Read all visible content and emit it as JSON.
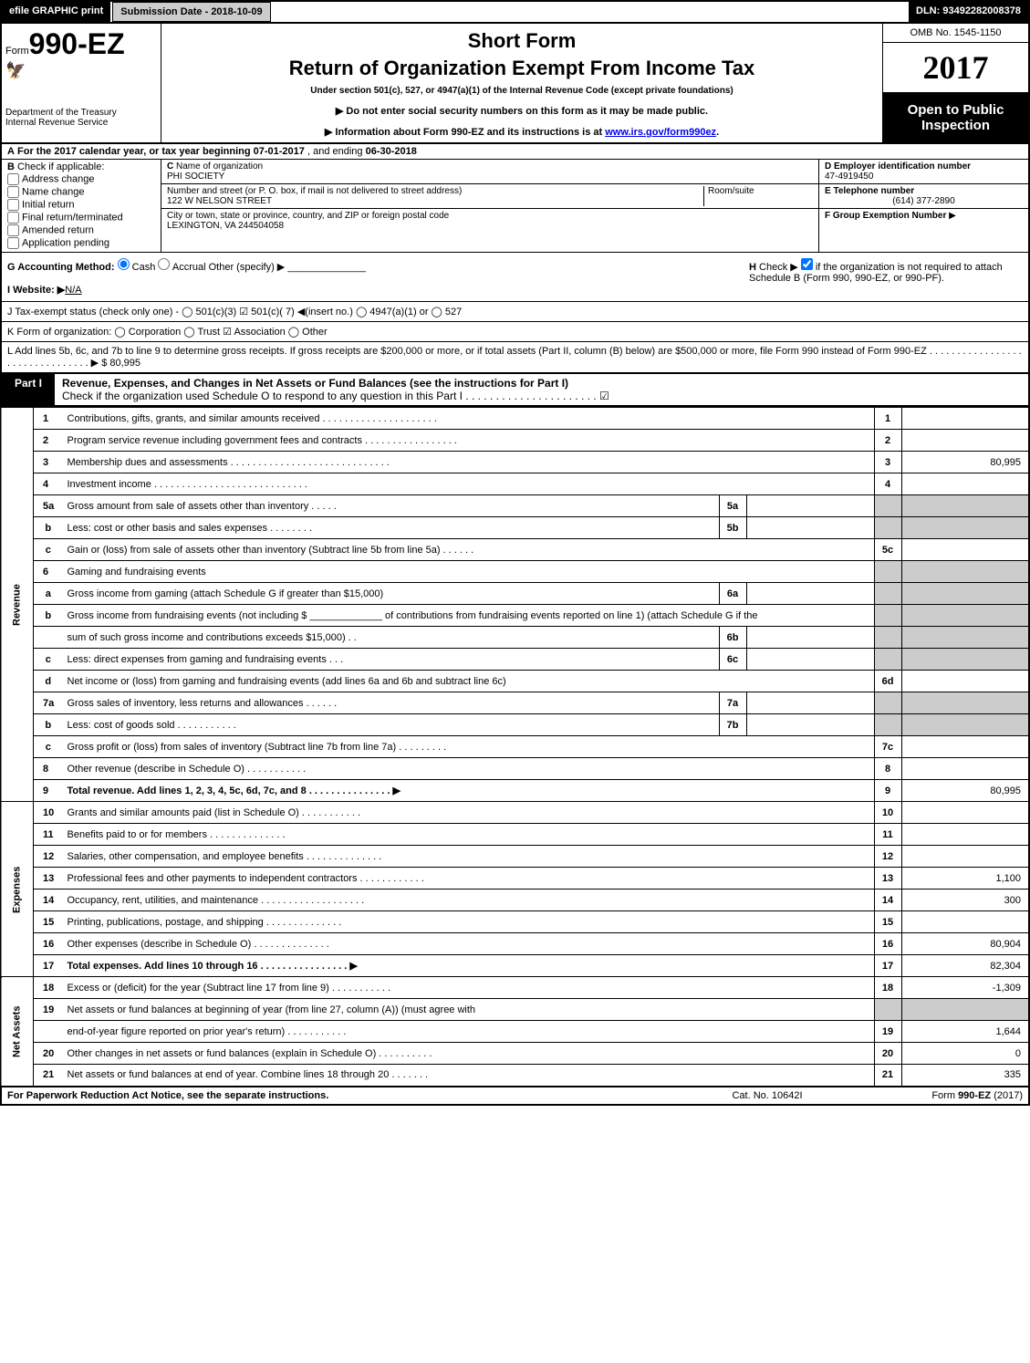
{
  "topbar": {
    "efile": "efile GRAPHIC print",
    "submission": "Submission Date - 2018-10-09",
    "dln": "DLN: 93492282008378"
  },
  "header": {
    "form_prefix": "Form",
    "form_no": "990-EZ",
    "dept1": "Department of the Treasury",
    "dept2": "Internal Revenue Service",
    "title1": "Short Form",
    "title2": "Return of Organization Exempt From Income Tax",
    "subtitle": "Under section 501(c), 527, or 4947(a)(1) of the Internal Revenue Code (except private foundations)",
    "note1": "▶ Do not enter social security numbers on this form as it may be made public.",
    "note2_pre": "▶ Information about Form 990-EZ and its instructions is at ",
    "note2_link": "www.irs.gov/form990ez",
    "note2_post": ".",
    "omb": "OMB No. 1545-1150",
    "year": "2017",
    "open": "Open to Public Inspection"
  },
  "period": {
    "a_label": "A",
    "text1": "For the 2017 calendar year, or tax year beginning ",
    "begin": "07-01-2017",
    "text2": ", and ending ",
    "end": "06-30-2018"
  },
  "boxB": {
    "label": "B",
    "title": "Check if applicable:",
    "opts": [
      "Address change",
      "Name change",
      "Initial return",
      "Final return/terminated",
      "Amended return",
      "Application pending"
    ]
  },
  "boxC": {
    "c_label": "C",
    "name_lbl": "Name of organization",
    "name": "PHI SOCIETY",
    "street_lbl": "Number and street (or P. O. box, if mail is not delivered to street address)",
    "room_lbl": "Room/suite",
    "street": "122 W NELSON STREET",
    "city_lbl": "City or town, state or province, country, and ZIP or foreign postal code",
    "city": "LEXINGTON, VA  244504058"
  },
  "boxD": {
    "d_lbl": "D Employer identification number",
    "d_val": "47-4919450",
    "e_lbl": "E Telephone number",
    "e_val": "(614) 377-2890",
    "f_lbl": "F Group Exemption Number",
    "f_arrow": "▶"
  },
  "ghi": {
    "g": "G Accounting Method:",
    "g_cash": "Cash",
    "g_accr": "Accrual",
    "g_other": "Other (specify) ▶",
    "i_lbl": "I Website: ▶",
    "i_val": "N/A",
    "h_lbl": "H",
    "h_text1": "Check ▶",
    "h_text2": "if the organization is not required to attach Schedule B (Form 990, 990-EZ, or 990-PF)."
  },
  "jline": "J Tax-exempt status (check only one) -  ◯ 501(c)(3)  ☑ 501(c)( 7) ◀(insert no.)  ◯ 4947(a)(1) or  ◯ 527",
  "kline": "K Form of organization:   ◯ Corporation   ◯ Trust   ☑ Association   ◯ Other",
  "lline": {
    "text": "L Add lines 5b, 6c, and 7b to line 9 to determine gross receipts. If gross receipts are $200,000 or more, or if total assets (Part II, column (B) below) are $500,000 or more, file Form 990 instead of Form 990-EZ  . . . . . . . . . . . . . . . . . . . . . . . . . . . . . . . . ▶ ",
    "amount": "$ 80,995"
  },
  "part1": {
    "label": "Part I",
    "title": "Revenue, Expenses, and Changes in Net Assets or Fund Balances (see the instructions for Part I)",
    "check": "Check if the organization used Schedule O to respond to any question in this Part I . . . . . . . . . . . . . . . . . . . . . . ☑"
  },
  "sections": {
    "revenue": "Revenue",
    "expenses": "Expenses",
    "netassets": "Net Assets"
  },
  "lines": [
    {
      "n": "1",
      "d": "Contributions, gifts, grants, and similar amounts received . . . . . . . . . . . . . . . . . . . . .",
      "r": "1",
      "v": ""
    },
    {
      "n": "2",
      "d": "Program service revenue including government fees and contracts . . . . . . . . . . . . . . . . .",
      "r": "2",
      "v": ""
    },
    {
      "n": "3",
      "d": "Membership dues and assessments . . . . . . . . . . . . . . . . . . . . . . . . . . . . .",
      "r": "3",
      "v": "80,995"
    },
    {
      "n": "4",
      "d": "Investment income . . . . . . . . . . . . . . . . . . . . . . . . . . . .",
      "r": "4",
      "v": ""
    },
    {
      "n": "5a",
      "d": "Gross amount from sale of assets other than inventory  . . . . .",
      "m": "5a"
    },
    {
      "n": "b",
      "sub": true,
      "d": "Less: cost or other basis and sales expenses . . . . . . . .",
      "m": "5b"
    },
    {
      "n": "c",
      "sub": true,
      "d": "Gain or (loss) from sale of assets other than inventory (Subtract line 5b from line 5a)             . . . . . .",
      "r": "5c",
      "v": ""
    },
    {
      "n": "6",
      "d": "Gaming and fundraising events",
      "shade": true
    },
    {
      "n": "a",
      "sub": true,
      "d": "Gross income from gaming (attach Schedule G if greater than $15,000)",
      "m": "6a"
    },
    {
      "n": "b",
      "sub": true,
      "d": "Gross income from fundraising events (not including $ _____________ of contributions from fundraising events reported on line 1) (attach Schedule G if the",
      "shade": true
    },
    {
      "n": "",
      "sub": true,
      "d": "sum of such gross income and contributions exceeds $15,000)          . .",
      "m": "6b"
    },
    {
      "n": "c",
      "sub": true,
      "d": "Less: direct expenses from gaming and fundraising events          . . .",
      "m": "6c"
    },
    {
      "n": "d",
      "sub": true,
      "d": "Net income or (loss) from gaming and fundraising events (add lines 6a and 6b and subtract line 6c)",
      "r": "6d",
      "v": ""
    },
    {
      "n": "7a",
      "d": "Gross sales of inventory, less returns and allowances               . . . . . .",
      "m": "7a"
    },
    {
      "n": "b",
      "sub": true,
      "d": "Less: cost of goods sold                          . . . . . . . . . . .",
      "m": "7b"
    },
    {
      "n": "c",
      "sub": true,
      "d": "Gross profit or (loss) from sales of inventory (Subtract line 7b from line 7a)             . . . . . . . . .",
      "r": "7c",
      "v": ""
    },
    {
      "n": "8",
      "d": "Other revenue (describe in Schedule O)                               . . . . . . . . . . .",
      "r": "8",
      "v": ""
    },
    {
      "n": "9",
      "d": "Total revenue. Add lines 1, 2, 3, 4, 5c, 6d, 7c, and 8          . . . . . . . . . . . . . . .  ▶",
      "r": "9",
      "v": "80,995",
      "bold": true
    }
  ],
  "exp_lines": [
    {
      "n": "10",
      "d": "Grants and similar amounts paid (list in Schedule O)                 . . . . . . . . . . .",
      "r": "10",
      "v": ""
    },
    {
      "n": "11",
      "d": "Benefits paid to or for members                          . . . . . . . . . . . . . .",
      "r": "11",
      "v": ""
    },
    {
      "n": "12",
      "d": "Salaries, other compensation, and employee benefits           . . . . . . . . . . . . . .",
      "r": "12",
      "v": ""
    },
    {
      "n": "13",
      "d": "Professional fees and other payments to independent contractors      . . . . . . . . . . . .",
      "r": "13",
      "v": "1,100"
    },
    {
      "n": "14",
      "d": "Occupancy, rent, utilities, and maintenance        . . . . . . . . . . . . . . . . . . .",
      "r": "14",
      "v": "300"
    },
    {
      "n": "15",
      "d": "Printing, publications, postage, and shipping                . . . . . . . . . . . . . .",
      "r": "15",
      "v": ""
    },
    {
      "n": "16",
      "d": "Other expenses (describe in Schedule O)                     . . . . . . . . . . . . . .",
      "r": "16",
      "v": "80,904"
    },
    {
      "n": "17",
      "d": "Total expenses. Add lines 10 through 16              . . . . . . . . . . . . . . . .  ▶",
      "r": "17",
      "v": "82,304",
      "bold": true
    }
  ],
  "net_lines": [
    {
      "n": "18",
      "d": "Excess or (deficit) for the year (Subtract line 17 from line 9)          . . . . . . . . . . .",
      "r": "18",
      "v": "-1,309"
    },
    {
      "n": "19",
      "d": "Net assets or fund balances at beginning of year (from line 27, column (A)) (must agree with",
      "shade": true
    },
    {
      "n": "",
      "sub": true,
      "d": "end-of-year figure reported on prior year's return)                  . . . . . . . . . . .",
      "r": "19",
      "v": "1,644"
    },
    {
      "n": "20",
      "d": "Other changes in net assets or fund balances (explain in Schedule O)      . . . . . . . . . .",
      "r": "20",
      "v": "0"
    },
    {
      "n": "21",
      "d": "Net assets or fund balances at end of year. Combine lines 18 through 20        . . . . . . .",
      "r": "21",
      "v": "335"
    }
  ],
  "footer": {
    "left": "For Paperwork Reduction Act Notice, see the separate instructions.",
    "mid": "Cat. No. 10642I",
    "right": "Form 990-EZ (2017)"
  },
  "colors": {
    "black": "#000000",
    "shade": "#cccccc",
    "link": "#0000ee"
  }
}
